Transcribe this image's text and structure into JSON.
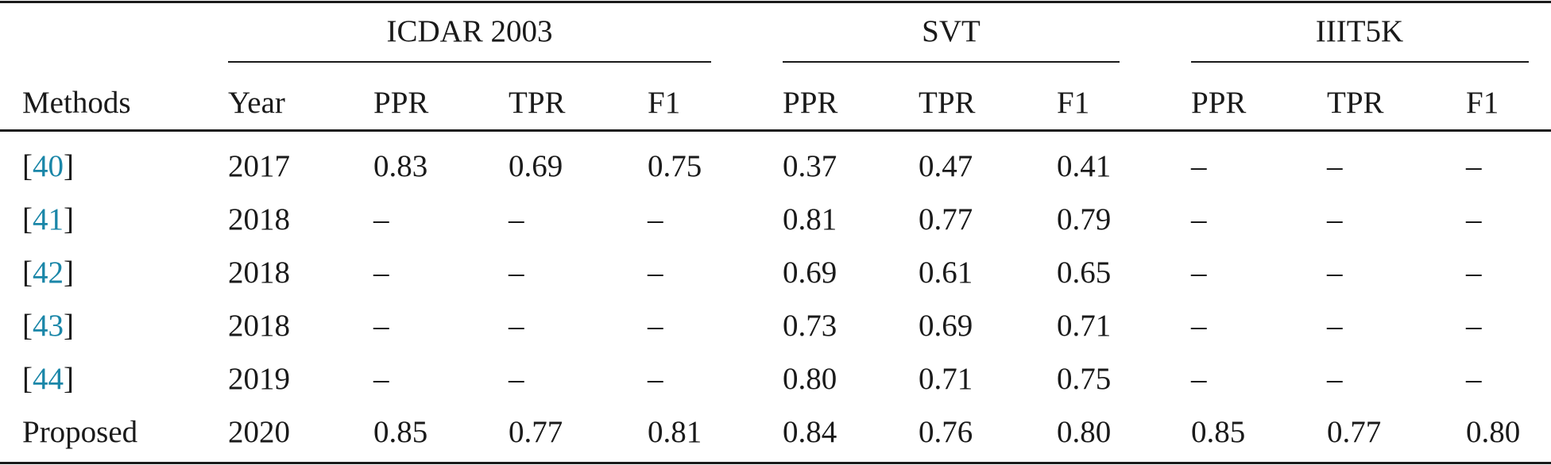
{
  "groups": {
    "g1": "ICDAR 2003",
    "g2": "SVT",
    "g3": "IIIT5K"
  },
  "header": {
    "methods": "Methods",
    "year": "Year",
    "c1": "PPR",
    "c2": "TPR",
    "c3": "F1",
    "c4": "PPR",
    "c5": "TPR",
    "c6": "F1",
    "c7": "PPR",
    "c8": "TPR",
    "c9": "F1"
  },
  "rows": [
    {
      "ref": "40",
      "year": "2017",
      "v": [
        "0.83",
        "0.69",
        "0.75",
        "0.37",
        "0.47",
        "0.41",
        "–",
        "–",
        "–"
      ]
    },
    {
      "ref": "41",
      "year": "2018",
      "v": [
        "–",
        "–",
        "–",
        "0.81",
        "0.77",
        "0.79",
        "–",
        "–",
        "–"
      ]
    },
    {
      "ref": "42",
      "year": "2018",
      "v": [
        "–",
        "–",
        "–",
        "0.69",
        "0.61",
        "0.65",
        "–",
        "–",
        "–"
      ]
    },
    {
      "ref": "43",
      "year": "2018",
      "v": [
        "–",
        "–",
        "–",
        "0.73",
        "0.69",
        "0.71",
        "–",
        "–",
        "–"
      ]
    },
    {
      "ref": "44",
      "year": "2019",
      "v": [
        "–",
        "–",
        "–",
        "0.80",
        "0.71",
        "0.75",
        "–",
        "–",
        "–"
      ]
    },
    {
      "method": "Proposed",
      "year": "2020",
      "v": [
        "0.85",
        "0.77",
        "0.81",
        "0.84",
        "0.76",
        "0.80",
        "0.85",
        "0.77",
        "0.80"
      ]
    }
  ],
  "brackets": {
    "open": "[",
    "close": "]"
  }
}
